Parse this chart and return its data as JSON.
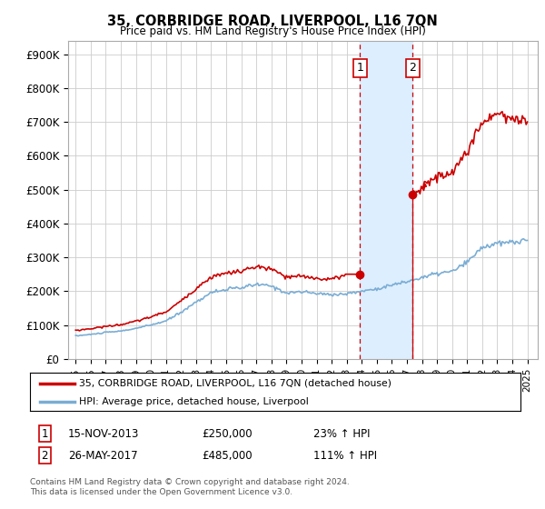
{
  "title": "35, CORBRIDGE ROAD, LIVERPOOL, L16 7QN",
  "subtitle": "Price paid vs. HM Land Registry's House Price Index (HPI)",
  "legend_line1": "35, CORBRIDGE ROAD, LIVERPOOL, L16 7QN (detached house)",
  "legend_line2": "HPI: Average price, detached house, Liverpool",
  "annotation1_date": "15-NOV-2013",
  "annotation1_price": "£250,000",
  "annotation1_hpi": "23% ↑ HPI",
  "annotation2_date": "26-MAY-2017",
  "annotation2_price": "£485,000",
  "annotation2_hpi": "111% ↑ HPI",
  "footer": "Contains HM Land Registry data © Crown copyright and database right 2024.\nThis data is licensed under the Open Government Licence v3.0.",
  "property_color": "#cc0000",
  "hpi_color": "#7aadd4",
  "shade_color": "#ddeeff",
  "background_color": "#ffffff",
  "sale1_year": 2013.88,
  "sale2_year": 2017.37,
  "sale1_price": 250000,
  "sale2_price": 485000,
  "ylim": [
    0,
    940000
  ],
  "yticks": [
    0,
    100000,
    200000,
    300000,
    400000,
    500000,
    600000,
    700000,
    800000,
    900000
  ],
  "ytick_labels": [
    "£0",
    "£100K",
    "£200K",
    "£300K",
    "£400K",
    "£500K",
    "£600K",
    "£700K",
    "£800K",
    "£900K"
  ]
}
